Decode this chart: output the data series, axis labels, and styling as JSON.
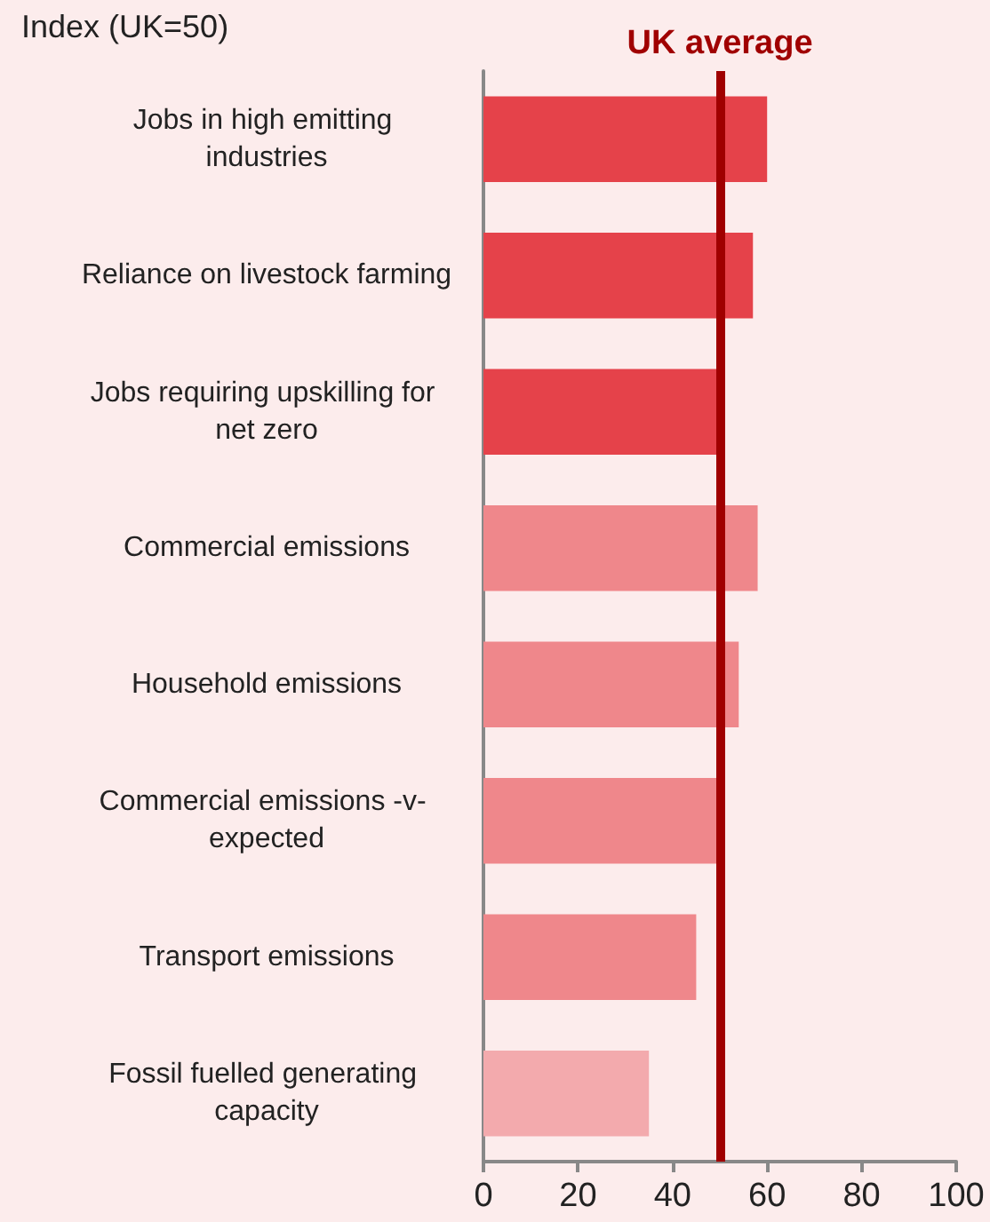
{
  "chart_data": {
    "type": "bar",
    "orientation": "horizontal",
    "xlabel": "Index (UK=50)",
    "categories": [
      "Jobs in high emitting industries",
      "Reliance on livestock farming",
      "Jobs requiring upskilling for net zero",
      "Commercial emissions",
      "Household emissions",
      "Commercial emissions -v- expected",
      "Transport emissions",
      "Fossil fuelled generating capacity"
    ],
    "values": [
      60,
      57,
      50,
      58,
      54,
      49.5,
      45,
      35
    ],
    "colors": [
      "#e5424a",
      "#e5424a",
      "#e5424a",
      "#ef878b",
      "#ef878b",
      "#ef878b",
      "#ef878b",
      "#f3aaad"
    ],
    "xlim": [
      0,
      100
    ],
    "xticks": [
      0,
      20,
      40,
      60,
      80,
      100
    ],
    "grid": false,
    "ref_lines": [
      {
        "axis": "x",
        "value": 50,
        "label": "UK average",
        "color": "#a00000",
        "line_style": "solid"
      }
    ]
  }
}
